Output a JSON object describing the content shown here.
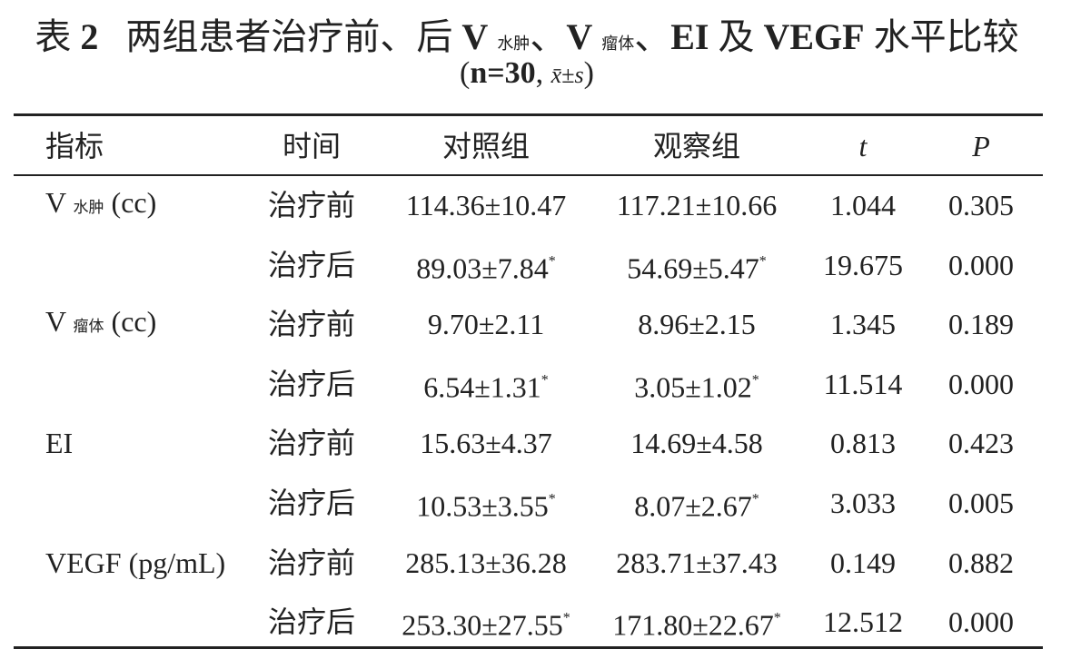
{
  "title": {
    "prefix": "表",
    "number": "2",
    "text1": "两组患者治疗前、后",
    "v1": "V",
    "v1_sub": "水肿",
    "sep1": "、",
    "v2": "V",
    "v2_sub": "瘤体",
    "sep2": "、",
    "ei": "EI",
    "text2": "及",
    "vegf": "VEGF",
    "text3": "水平比较"
  },
  "subtitle": {
    "open": "(",
    "n": "n=30",
    "comma": ",",
    "mean": "x̄",
    "pm": "±",
    "s": "s",
    "close": ")"
  },
  "table": {
    "headers": [
      "指标",
      "时间",
      "对照组",
      "观察组",
      "t",
      "P"
    ],
    "rows": [
      {
        "indicator": {
          "main": "V",
          "sub": "水肿",
          "unit": "(cc)"
        },
        "time": "治疗前",
        "control": "114.36±10.47",
        "observe": "117.21±10.66",
        "t": "1.044",
        "p": "0.305"
      },
      {
        "time": "治疗后",
        "control": "89.03±7.84",
        "control_mark": "*",
        "observe": "54.69±5.47",
        "observe_mark": "*",
        "t": "19.675",
        "p": "0.000"
      },
      {
        "indicator": {
          "main": "V",
          "sub": "瘤体",
          "unit": "(cc)"
        },
        "time": "治疗前",
        "control": "9.70±2.11",
        "observe": "8.96±2.15",
        "t": "1.345",
        "p": "0.189"
      },
      {
        "time": "治疗后",
        "control": "6.54±1.31",
        "control_mark": "*",
        "observe": "3.05±1.02",
        "observe_mark": "*",
        "t": "11.514",
        "p": "0.000"
      },
      {
        "indicator": {
          "main": "EI"
        },
        "time": "治疗前",
        "control": "15.63±4.37",
        "observe": "14.69±4.58",
        "t": "0.813",
        "p": "0.423"
      },
      {
        "time": "治疗后",
        "control": "10.53±3.55",
        "control_mark": "*",
        "observe": "8.07±2.67",
        "observe_mark": "*",
        "t": "3.033",
        "p": "0.005"
      },
      {
        "indicator": {
          "main": "VEGF",
          "unit": "(pg/mL)"
        },
        "time": "治疗前",
        "control": "285.13±36.28",
        "observe": "283.71±37.43",
        "t": "0.149",
        "p": "0.882"
      },
      {
        "time": "治疗后",
        "control": "253.30±27.55",
        "control_mark": "*",
        "observe": "171.80±22.67",
        "observe_mark": "*",
        "t": "12.512",
        "p": "0.000"
      }
    ]
  }
}
